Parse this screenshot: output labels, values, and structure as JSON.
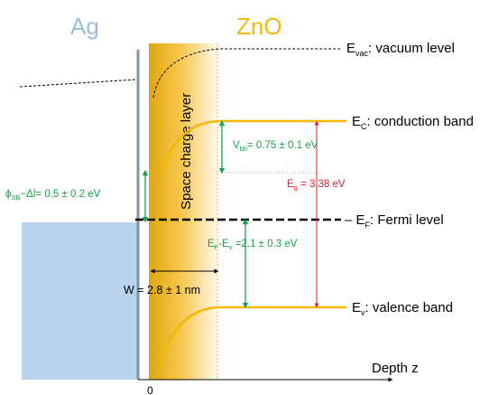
{
  "colors": {
    "metal_fill": "#b9d3ec",
    "metal_title": "#9bbde0",
    "oxide_title": "#f0b90b",
    "band": "#f5b700",
    "green": "#1aa24a",
    "red": "#e0202a",
    "interface": "#7f93a8"
  },
  "titles": {
    "metal": "Ag",
    "oxide": "ZnO"
  },
  "levels": {
    "vacuum_main": "E",
    "vacuum_sub": "vac",
    "vacuum_desc": ": vacuum level",
    "conduction_main": "E",
    "conduction_sub": "C",
    "conduction_desc": ": conduction band",
    "fermi_main": "E",
    "fermi_sub": "F",
    "fermi_desc": ": Fermi level",
    "valence_main": "E",
    "valence_sub": "v",
    "valence_desc": ": valence band"
  },
  "region": {
    "label": "Space charge layer"
  },
  "annotations": {
    "barrier_phi": "ϕ",
    "barrier_sub": "SB",
    "barrier_rest": "−Δl= 0.5 ± 0.2 eV",
    "vbb_main": "V",
    "vbb_sub": "bb",
    "vbb_rest": "= 0.75 ± 0.1 eV",
    "eg_main": "E",
    "eg_sub": "g",
    "eg_rest": " = 3.38 eV",
    "efev_e1": "E",
    "efev_s1": "F",
    "efev_mid": "-E",
    "efev_s2": "v",
    "efev_rest": " =2.1 ± 0.3 eV",
    "width": "W = 2.8 ±  1 nm"
  },
  "axis": {
    "x_label": "Depth z",
    "origin": "0"
  }
}
